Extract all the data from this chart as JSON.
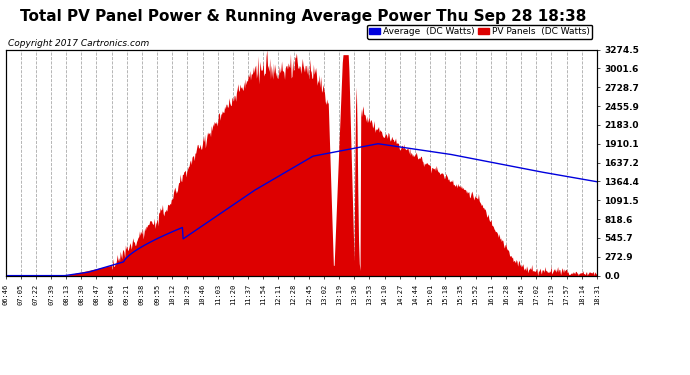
{
  "title": "Total PV Panel Power & Running Average Power Thu Sep 28 18:38",
  "copyright": "Copyright 2017 Cartronics.com",
  "ylabel_right_ticks": [
    0.0,
    272.9,
    545.7,
    818.6,
    1091.5,
    1364.4,
    1637.2,
    1910.1,
    2183.0,
    2455.9,
    2728.7,
    3001.6,
    3274.5
  ],
  "ymax": 3274.5,
  "ymin": 0.0,
  "legend_avg_label": "Average  (DC Watts)",
  "legend_pv_label": "PV Panels  (DC Watts)",
  "legend_avg_color": "#0000dd",
  "legend_pv_color": "#dd0000",
  "plot_bg_color": "#ffffff",
  "fig_bg_color": "#ffffff",
  "grid_color": "#aaaaaa",
  "title_fontsize": 11,
  "copyright_fontsize": 6.5,
  "x_tick_labels": [
    "06:46",
    "07:05",
    "07:22",
    "07:39",
    "08:13",
    "08:30",
    "08:47",
    "09:04",
    "09:21",
    "09:38",
    "09:55",
    "10:12",
    "10:29",
    "10:46",
    "11:03",
    "11:20",
    "11:37",
    "11:54",
    "12:11",
    "12:28",
    "12:45",
    "13:02",
    "13:19",
    "13:36",
    "13:53",
    "14:10",
    "14:27",
    "14:44",
    "15:01",
    "15:18",
    "15:35",
    "15:52",
    "16:11",
    "16:28",
    "16:45",
    "17:02",
    "17:19",
    "17:57",
    "18:14",
    "18:31"
  ]
}
